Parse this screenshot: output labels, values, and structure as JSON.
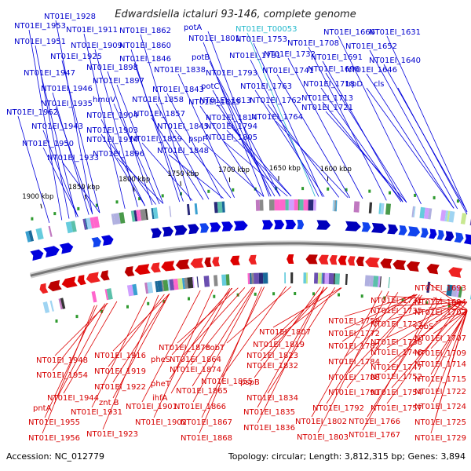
{
  "title": "Edwardsiella ictaluri 93-146, complete genome",
  "footer": {
    "accession": "Accession: NC_012779",
    "info": "Topology: circular; Length: 3,812,315 bp; Genes: 3,894"
  },
  "colors": {
    "forward": "#0000dd",
    "reverse": "#dd0000",
    "backbone": "#777777",
    "cyan_label": "#22b8cc"
  },
  "ticks": [
    "1900 kbp",
    "1850 kbp",
    "1800 kbp",
    "1750 kbp",
    "1700 kbp",
    "1650 kbp",
    "1600 kbp"
  ],
  "top_labels": [
    "NT01EI_1928",
    "NT01EI_1953",
    "NT01EI_1911",
    "NT01EI_1862",
    "potA",
    "NT01EI_T00053",
    "NT01EI_1666",
    "NT01EI_1631",
    "NT01EI_1951",
    "NT01EI_1909",
    "NT01EI_1860",
    "NT01EI_1801",
    "NT01EI_1753",
    "NT01EI_1708",
    "NT01EI_1652",
    "NT01EI_1925",
    "NT01EI_1846",
    "potB",
    "NT01EI_1781",
    "NT01EI_1732",
    "NT01EI_1691",
    "NT01EI_1640",
    "NT01EI_1947",
    "NT01EI_1898",
    "NT01EI_1838",
    "NT01EI_1793",
    "NT01EI_1741",
    "NT01EI_1696",
    "NT01EI_1646",
    "NT01EI_1897",
    "potC",
    "NT01EI_1763",
    "NT01EI_1718",
    "trpD",
    "cls",
    "NT01EI_1946",
    "NT01EI_1843",
    "NT01EI_1813",
    "hmuV",
    "NT01EI_1858",
    "NT01EI_1815",
    "NT01EI_1935",
    "NT01EI_1762",
    "NT01EI_1713",
    "NT01EI_1721",
    "NT01EI_1962",
    "NT01EI_1904",
    "NT01EI_1857",
    "NT01EI_1814",
    "NT01EI_1764",
    "NT01EI_1943",
    "NT01EI_1903",
    "NT01EI_1845",
    "NT01EI_1794",
    "NT01EI_1914",
    "NT01EI_1859",
    "pspF",
    "NT01EI_1805",
    "NT01EI_1950",
    "NT01EI_1896",
    "NT01EI_1848",
    "NT01EI_1933"
  ],
  "bottom_labels": [
    "NT01EI_1693",
    "NT01EI_1731",
    "NT01EI_1694",
    "NT01EI_1735",
    "NT01EI_1702",
    "NT01EI_1758",
    "NT01EI_1723",
    "cobS",
    "NT01EI_1807",
    "NT01EI_1772",
    "NT01EI_1707",
    "NT01EI_1819",
    "NT01EI_1782",
    "NT01EI_1738",
    "NT01EI_1878",
    "cobT",
    "NT01EI_1823",
    "NT01EI_1709",
    "NT01EI_1916",
    "pheS",
    "NT01EI_1864",
    "NT01EI_1746",
    "NT01EI_1948",
    "NT01EI_1874",
    "NT01EI_1832",
    "NT01EI_1784",
    "NT01EI_1747",
    "NT01EI_1714",
    "NT01EI_1919",
    "NT01EI_1954",
    "pheT",
    "NT01EI_1788",
    "NT01EI_1752",
    "NT01EI_1715",
    "NT01EI_1922",
    "NT01EI_1855",
    "pspB",
    "NT01EI_1865",
    "NT01EI_1791",
    "NT01EI_1754",
    "NT01EI_1722",
    "NT01EI_1944",
    "ihfA",
    "NT01EI_1834",
    "znt B",
    "NT01EI_1901",
    "NT01EI_1866",
    "pntA",
    "NT01EI_1792",
    "NT01EI_1757",
    "NT01EI_1724",
    "NT01EI_1931",
    "NT01EI_1835",
    "NT01EI_1955",
    "NT01EI_1902",
    "NT01EI_1867",
    "NT01EI_1836",
    "NT01EI_1802",
    "NT01EI_1766",
    "NT01EI_1725",
    "NT01EI_1956",
    "NT01EI_1923",
    "NT01EI_1868",
    "NT01EI_1803",
    "NT01EI_1767",
    "NT01EI_1729"
  ]
}
